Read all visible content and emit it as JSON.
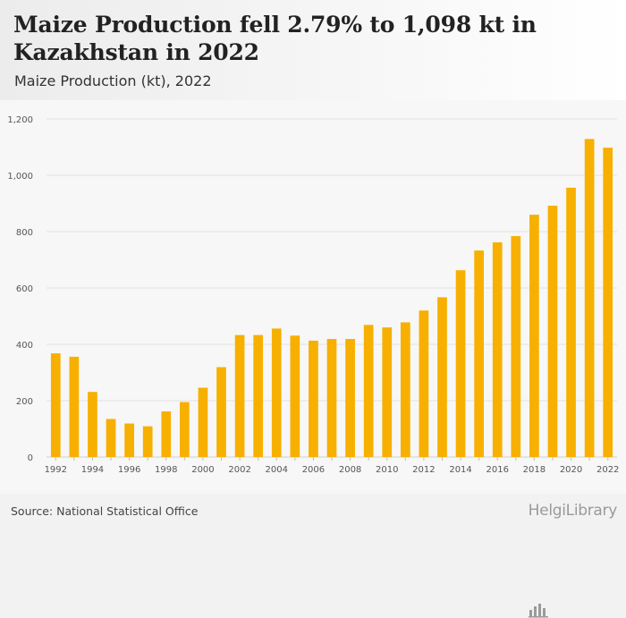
{
  "header": {
    "title": "Maize Production fell 2.79% to 1,098 kt in Kazakhstan in 2022",
    "subtitle": "Maize Production (kt), 2022"
  },
  "footer": {
    "source": "Source: National Statistical Office",
    "brand": "HelgiLibrary",
    "brand_icon": "chart-bars-icon"
  },
  "colors": {
    "bar": "#F7B000",
    "grid": "#e2e2e2",
    "axis_text": "#555555"
  },
  "chart_data": {
    "type": "bar",
    "title": "Maize Production fell 2.79% to 1,098 kt in Kazakhstan in 2022",
    "subtitle": "Maize Production (kt), 2022",
    "xlabel": "",
    "ylabel": "",
    "ylim": [
      0,
      1200
    ],
    "yticks": [
      0,
      200,
      400,
      600,
      800,
      1000,
      1200
    ],
    "ytick_labels": [
      "0",
      "200",
      "400",
      "600",
      "800",
      "1,000",
      "1,200"
    ],
    "grid": true,
    "legend": "none",
    "categories": [
      "1992",
      "1993",
      "1994",
      "1995",
      "1996",
      "1997",
      "1998",
      "1999",
      "2000",
      "2001",
      "2002",
      "2003",
      "2004",
      "2005",
      "2006",
      "2007",
      "2008",
      "2009",
      "2010",
      "2011",
      "2012",
      "2013",
      "2014",
      "2015",
      "2016",
      "2017",
      "2018",
      "2019",
      "2020",
      "2021",
      "2022"
    ],
    "xtick_labels": [
      "1992",
      "1994",
      "1996",
      "1998",
      "2000",
      "2002",
      "2004",
      "2006",
      "2008",
      "2010",
      "2012",
      "2014",
      "2016",
      "2018",
      "2020",
      "2022"
    ],
    "values": [
      368,
      356,
      231,
      135,
      119,
      109,
      162,
      195,
      246,
      319,
      433,
      433,
      456,
      431,
      413,
      419,
      419,
      469,
      460,
      478,
      520,
      567,
      663,
      733,
      762,
      784,
      860,
      892,
      956,
      1129,
      1098
    ]
  }
}
